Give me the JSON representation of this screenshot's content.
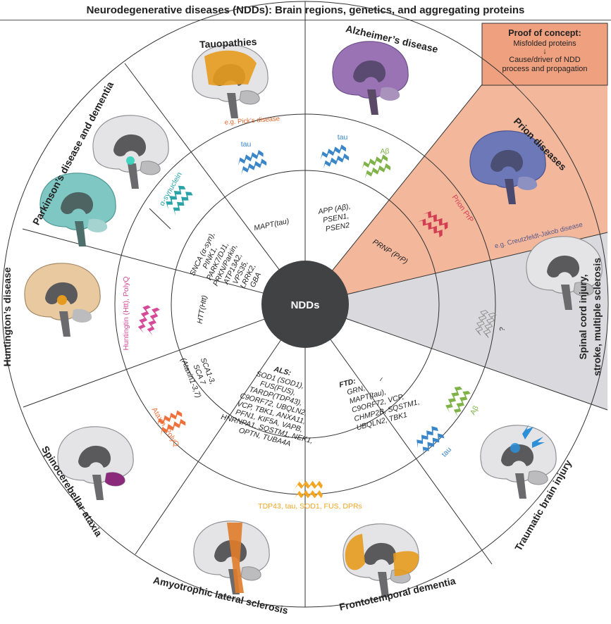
{
  "title": "Neurodegenerative diseases (NDDs): Brain regions, genetics, and aggregating proteins",
  "center_label": "NDDs",
  "proof_of_concept": {
    "title": "Proof of concept:",
    "subtitle": "Misfolded proteins",
    "arrow": "↓",
    "line1": "Cause/driver of NDD",
    "line2": "process and propagation"
  },
  "colors": {
    "prion_sector": "#f3b79c",
    "prion_outer": "#efa07f",
    "grey_sector": "#d9d9de",
    "tau": "#3a86c8",
    "abeta": "#7fb34a",
    "asyn": "#2aa3a8",
    "htt": "#d54b97",
    "ataxin": "#f0703b",
    "tdp43": "#f2a623",
    "prp": "#d23f52",
    "hub": "#414244"
  },
  "diseases": {
    "tauopathies": {
      "name": "Tauopathies",
      "example": "e.g. Pick’s disease",
      "protein": "tau",
      "genes": [
        "MAPT(tau)"
      ]
    },
    "alzheimers": {
      "name": "Alzheimer’s disease",
      "protein_1": "tau",
      "protein_2": "Aβ",
      "genes": [
        "APP (Aβ),",
        "PSEN1,",
        "PSEN2"
      ]
    },
    "prion": {
      "name": "Prion diseases",
      "example": "e.g. Creutzfeldt-Jakob disease",
      "protein": "Prion PrP",
      "genes": [
        "PRNP (PrP)"
      ]
    },
    "spinal": {
      "name_1": "Spinal cord injury,",
      "name_2": "stroke, multiple sclerosis",
      "unknown": "?"
    },
    "tbi": {
      "name": "Traumatic brain injury",
      "protein_1": "tau",
      "protein_2": "Aβ",
      "genes": "–"
    },
    "ftd": {
      "name": "Frontotemporal dementia",
      "gene_title": "FTD:",
      "genes": [
        "GRN,",
        "MAPT(tau),",
        "C9ORF72, VCP,",
        "CHMP2B, SQSTM1,",
        "UBQLN2, TBK1"
      ]
    },
    "als": {
      "name": "Amyotrophic lateral sclerosis",
      "protein": "TDP43, tau, SOD1, FUS, DPRs",
      "gene_title": "ALS:",
      "genes": [
        "SOD1 (SOD1),",
        "FUS(FUS),",
        "TARDP(TDP43),",
        "C9ORF72, UBQLN2,",
        "VCP, TBK1, ANXA11,",
        "PFN1, KIF5A, VAPB,",
        "HNRNPA1, SQSTM1, NEK1,",
        "OPTN, TUBA4A"
      ]
    },
    "sca": {
      "name": "Spinocerebellar ataxia",
      "protein": "Ataxin, PolyQ",
      "genes": [
        "SCA1-3,",
        "SCA 7",
        "(Ataxin1-3,7)"
      ]
    },
    "huntington": {
      "name": "Huntington’s disease",
      "protein": "Huntingtin (Htt), PolyQ",
      "genes": [
        "HTT(Htt)"
      ]
    },
    "parkinson": {
      "name": "Parkinson’s disease and dementia",
      "protein": "α-synuclein",
      "genes": [
        "SNCA (α-syn),",
        "PINK1,",
        "PARK7/DJ1,",
        "PRKN/Parkin,",
        "ATP13A2,",
        "VPS35,",
        "LRRK2,",
        "GBA"
      ]
    }
  }
}
